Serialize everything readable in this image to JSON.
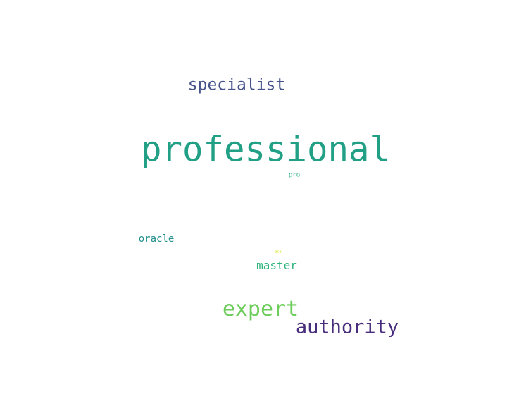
{
  "words": {
    "professional": {
      "text": "professional",
      "color": "#22a085"
    },
    "specialist": {
      "text": "specialist",
      "color": "#46528a"
    },
    "pro": {
      "text": "pro",
      "color": "#2bb07f"
    },
    "oracle": {
      "text": "oracle",
      "color": "#21908c"
    },
    "ace": {
      "text": "ace",
      "color": "#d4e21a"
    },
    "master": {
      "text": "master",
      "color": "#2fb47c"
    },
    "expert": {
      "text": "expert",
      "color": "#6ccd5a"
    },
    "authority": {
      "text": "authority",
      "color": "#472d7b"
    }
  }
}
